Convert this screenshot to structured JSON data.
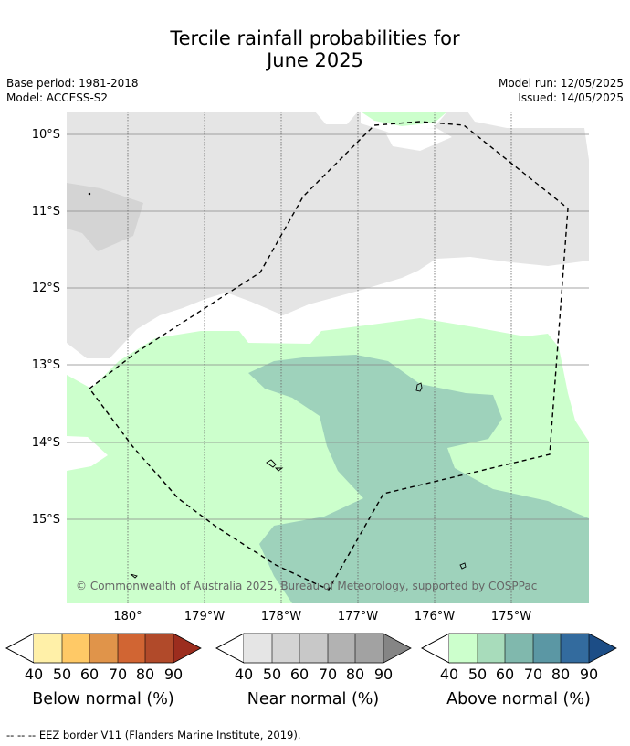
{
  "title": {
    "line1": "Tercile rainfall probabilities for",
    "line2": "June 2025"
  },
  "meta": {
    "base_period": "Base period: 1981-2018",
    "model": "Model: ACCESS-S2",
    "model_run": "Model run: 12/05/2025",
    "issued": "Issued: 14/05/2025"
  },
  "map": {
    "lat_labels": [
      "10°S",
      "11°S",
      "12°S",
      "13°S",
      "14°S",
      "15°S"
    ],
    "lon_labels": [
      "180°",
      "179°W",
      "178°W",
      "177°W",
      "176°W",
      "175°W"
    ],
    "copyright": "© Commonwealth of Australia 2025, Bureau of Meteorology, supported by COSPPac",
    "colors": {
      "near_40": "#e5e5e5",
      "near_50": "#d4d4d4",
      "above_40": "#ccffcc",
      "above_60": "#9ed2bb",
      "land_outline": "#000000",
      "eez": "#000000"
    }
  },
  "colorbars": [
    {
      "title": "Below normal (%)",
      "ticks": [
        "40",
        "50",
        "60",
        "70",
        "80",
        "90"
      ],
      "colors": [
        "#fff0a8",
        "#ffc966",
        "#e0944a",
        "#d16533",
        "#b14a2a",
        "#9c2d1e"
      ]
    },
    {
      "title": "Near normal (%)",
      "ticks": [
        "40",
        "50",
        "60",
        "70",
        "80",
        "90"
      ],
      "colors": [
        "#e5e5e5",
        "#d4d4d4",
        "#c8c8c8",
        "#b2b2b2",
        "#a2a2a2",
        "#858585"
      ]
    },
    {
      "title": "Above normal (%)",
      "ticks": [
        "40",
        "50",
        "60",
        "70",
        "80",
        "90"
      ],
      "colors": [
        "#ccffcc",
        "#a8dcbb",
        "#80b8ad",
        "#5b97a4",
        "#336b9e",
        "#1c4d86"
      ]
    }
  ],
  "footer": "--  --  -- EEZ border V11 (Flanders Marine Institute, 2019)."
}
